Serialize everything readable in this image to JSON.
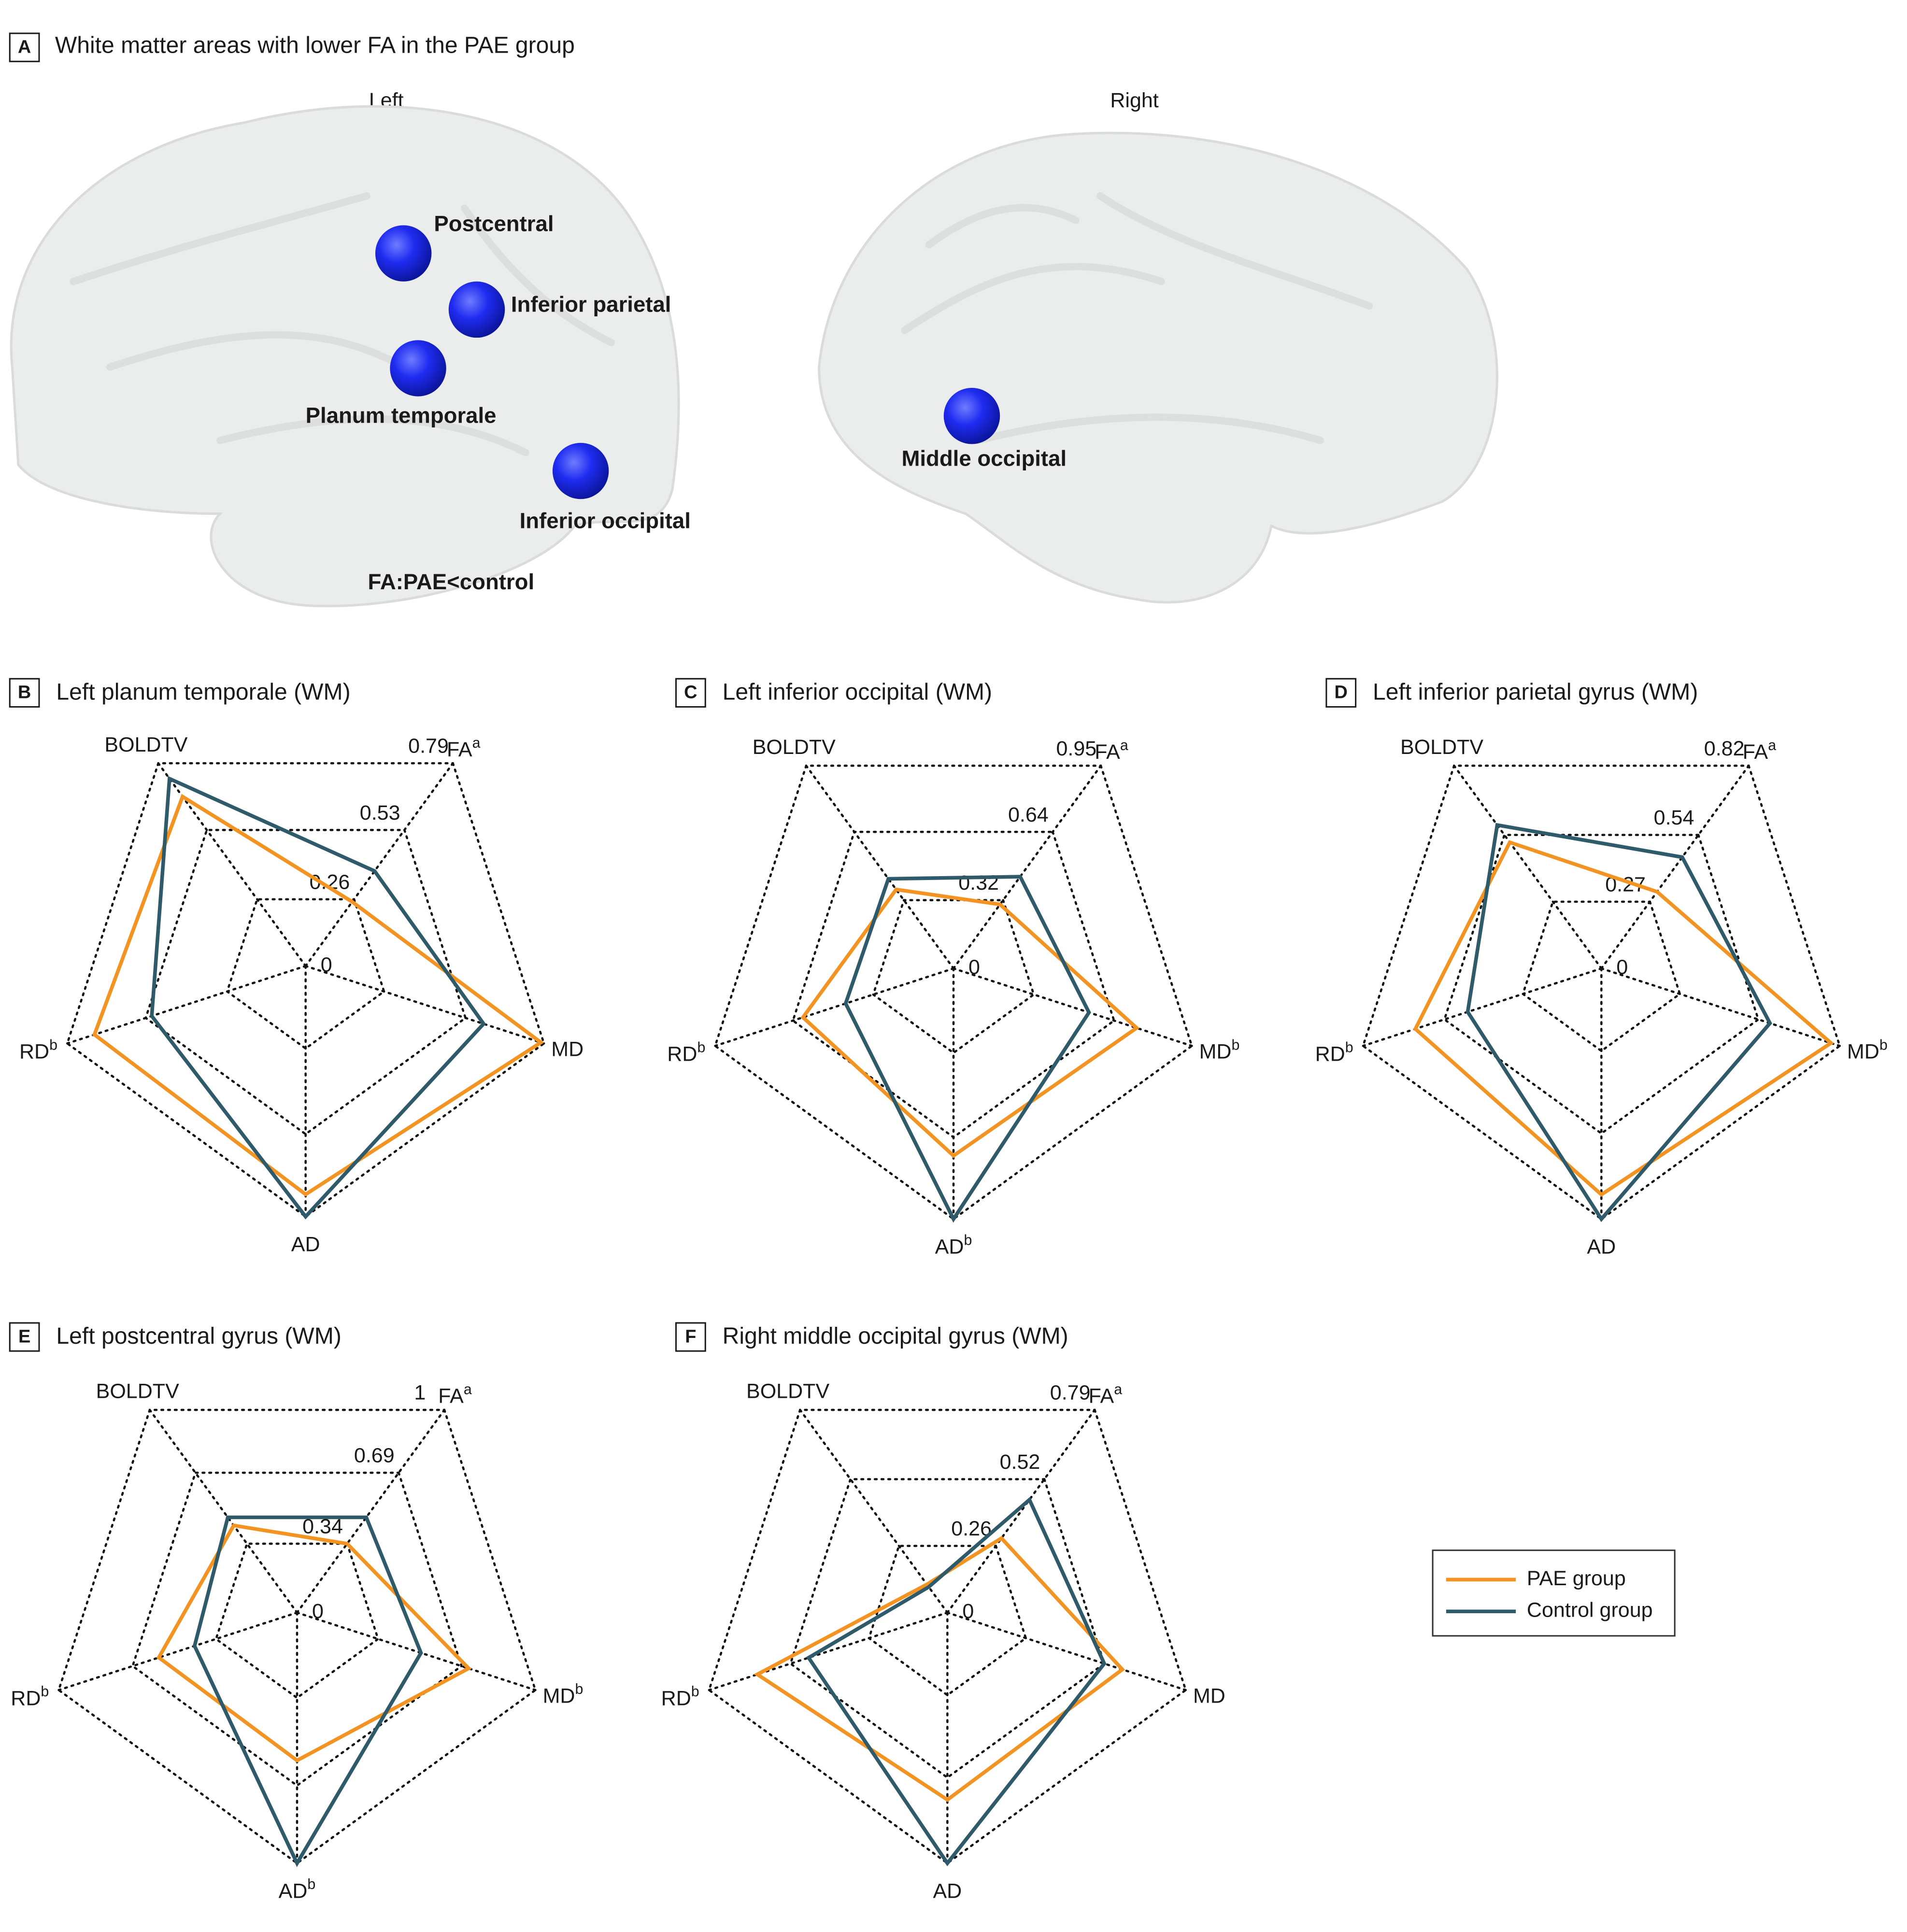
{
  "panel_a": {
    "label": "A",
    "title": "White matter areas with lower FA in the PAE group",
    "left": "Left",
    "right": "Right",
    "regions": [
      "Postcentral",
      "Inferior parietal",
      "Planum temporale",
      "Inferior occipital",
      "Middle occipital"
    ],
    "note": "FA:PAE<control"
  },
  "legend": [
    {
      "name": "PAE group",
      "color": "#f39322"
    },
    {
      "name": "Control group",
      "color": "#2f5a69"
    }
  ],
  "chart_data": [
    {
      "type": "radar",
      "label": "B",
      "title": "Left planum temporale (WM)",
      "axes": [
        {
          "name": "FA",
          "note": "a"
        },
        {
          "name": "MD"
        },
        {
          "name": "AD"
        },
        {
          "name": "RD",
          "note": "b"
        },
        {
          "name": "BOLDTV"
        }
      ],
      "rlim": [
        0,
        0.79
      ],
      "rticks": [
        0,
        0.26,
        0.53,
        0.79
      ],
      "series": [
        {
          "values": [
            0.25,
            0.78,
            0.72,
            0.7,
            0.66
          ]
        },
        {
          "values": [
            0.37,
            0.59,
            0.79,
            0.51,
            0.73
          ]
        }
      ]
    },
    {
      "type": "radar",
      "label": "C",
      "title": "Left inferior occipital (WM)",
      "axes": [
        {
          "name": "FA",
          "note": "a"
        },
        {
          "name": "MD",
          "note": "b"
        },
        {
          "name": "AD",
          "note": "b"
        },
        {
          "name": "RD",
          "note": "b"
        },
        {
          "name": "BOLDTV"
        }
      ],
      "rlim": [
        0,
        0.95
      ],
      "rticks": [
        0,
        0.32,
        0.64,
        0.95
      ],
      "series": [
        {
          "values": [
            0.3,
            0.73,
            0.71,
            0.6,
            0.37
          ]
        },
        {
          "values": [
            0.43,
            0.54,
            0.95,
            0.43,
            0.42
          ]
        }
      ]
    },
    {
      "type": "radar",
      "label": "D",
      "title": "Left inferior parietal gyrus (WM)",
      "axes": [
        {
          "name": "FA",
          "note": "a"
        },
        {
          "name": "MD",
          "note": "b"
        },
        {
          "name": "AD"
        },
        {
          "name": "RD",
          "note": "b"
        },
        {
          "name": "BOLDTV"
        }
      ],
      "rlim": [
        0,
        0.82
      ],
      "rticks": [
        0,
        0.27,
        0.54,
        0.82
      ],
      "series": [
        {
          "values": [
            0.31,
            0.79,
            0.74,
            0.64,
            0.51
          ]
        },
        {
          "values": [
            0.45,
            0.58,
            0.82,
            0.46,
            0.58
          ]
        }
      ]
    },
    {
      "type": "radar",
      "label": "E",
      "title": "Left postcentral gyrus (WM)",
      "axes": [
        {
          "name": "FA",
          "note": "a"
        },
        {
          "name": "MD",
          "note": "b"
        },
        {
          "name": "AD",
          "note": "b"
        },
        {
          "name": "RD",
          "note": "b"
        },
        {
          "name": "BOLDTV"
        }
      ],
      "rlim": [
        0,
        1
      ],
      "rticks": [
        0,
        0.34,
        0.69,
        1
      ],
      "series": [
        {
          "values": [
            0.34,
            0.72,
            0.59,
            0.58,
            0.43
          ]
        },
        {
          "values": [
            0.47,
            0.52,
            1,
            0.43,
            0.47
          ]
        }
      ]
    },
    {
      "type": "radar",
      "label": "F",
      "title": "Right middle occipital gyrus (WM)",
      "axes": [
        {
          "name": "FA",
          "note": "a"
        },
        {
          "name": "MD"
        },
        {
          "name": "AD"
        },
        {
          "name": "RD",
          "note": "b"
        },
        {
          "name": "BOLDTV"
        }
      ],
      "rlim": [
        0,
        0.79
      ],
      "rticks": [
        0,
        0.26,
        0.52,
        0.79
      ],
      "series": [
        {
          "values": [
            0.29,
            0.58,
            0.59,
            0.63,
            0.11
          ]
        },
        {
          "values": [
            0.44,
            0.52,
            0.79,
            0.46,
            0.1
          ]
        }
      ]
    }
  ]
}
